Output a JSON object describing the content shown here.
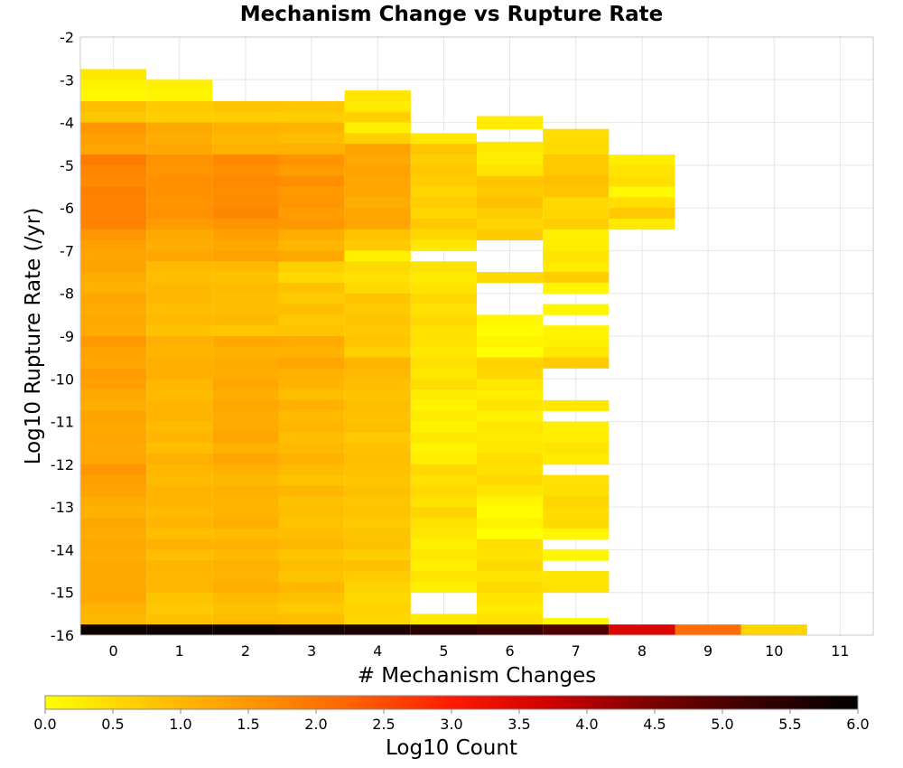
{
  "chart_data": {
    "type": "heatmap",
    "title": "Mechanism Change vs Rupture Rate",
    "xlabel": "# Mechanism Changes",
    "ylabel": "Log10 Rupture Rate (/yr)",
    "xlim": [
      -0.5,
      11.5
    ],
    "ylim": [
      -16,
      -2
    ],
    "x_ticks": [
      "0",
      "1",
      "2",
      "3",
      "4",
      "5",
      "6",
      "7",
      "8",
      "9",
      "10",
      "11"
    ],
    "y_ticks": [
      "-2",
      "-3",
      "-4",
      "-5",
      "-6",
      "-7",
      "-8",
      "-9",
      "-10",
      "-11",
      "-12",
      "-13",
      "-14",
      "-15",
      "-16"
    ],
    "grid": true,
    "y_bin_width": 0.25,
    "colorbar": {
      "label": "Log10 Count",
      "min": 0.0,
      "max": 6.0,
      "ticks": [
        "0.0",
        "0.5",
        "1.0",
        "1.5",
        "2.0",
        "2.5",
        "3.0",
        "3.5",
        "4.0",
        "4.5",
        "5.0",
        "5.5",
        "6.0"
      ],
      "palette": [
        "#ffff00",
        "#ffc800",
        "#ff9600",
        "#ff6400",
        "#ff1a00",
        "#cc0000",
        "#7a0000",
        "#3a0000",
        "#000000"
      ]
    },
    "columns": [
      {
        "x": 0,
        "runs": [
          [
            -2.75,
            -3.5,
            0.2
          ],
          [
            -3.5,
            -4.0,
            0.8
          ],
          [
            -4.0,
            -4.75,
            1.4
          ],
          [
            -4.75,
            -6.5,
            1.8
          ],
          [
            -6.5,
            -7.25,
            1.4
          ],
          [
            -7.25,
            -9.0,
            1.2
          ],
          [
            -9.0,
            -10.0,
            1.35
          ],
          [
            -10.0,
            -12.0,
            1.25
          ],
          [
            -12.0,
            -12.5,
            1.4
          ],
          [
            -12.5,
            -15.0,
            1.2
          ],
          [
            -15.0,
            -15.75,
            1.1
          ],
          [
            -15.75,
            -16.0,
            5.8
          ]
        ]
      },
      {
        "x": 1,
        "runs": [
          [
            -3.0,
            -3.5,
            0.2
          ],
          [
            -3.5,
            -4.0,
            0.7
          ],
          [
            -4.0,
            -4.75,
            1.2
          ],
          [
            -4.75,
            -6.5,
            1.55
          ],
          [
            -6.5,
            -7.25,
            1.2
          ],
          [
            -7.25,
            -9.0,
            0.95
          ],
          [
            -9.0,
            -10.0,
            1.1
          ],
          [
            -10.0,
            -12.0,
            1.0
          ],
          [
            -12.0,
            -15.0,
            1.0
          ],
          [
            -15.0,
            -15.75,
            0.8
          ],
          [
            -15.75,
            -16.0,
            5.8
          ]
        ]
      },
      {
        "x": 2,
        "runs": [
          [
            -3.5,
            -4.0,
            0.75
          ],
          [
            -4.0,
            -4.75,
            1.05
          ],
          [
            -4.75,
            -6.5,
            1.65
          ],
          [
            -6.5,
            -7.25,
            1.3
          ],
          [
            -7.25,
            -9.0,
            0.9
          ],
          [
            -9.0,
            -10.0,
            1.15
          ],
          [
            -10.0,
            -12.0,
            1.2
          ],
          [
            -12.0,
            -15.0,
            1.05
          ],
          [
            -15.0,
            -15.75,
            0.9
          ],
          [
            -15.75,
            -16.0,
            5.8
          ]
        ]
      },
      {
        "x": 3,
        "runs": [
          [
            -3.5,
            -4.0,
            0.75
          ],
          [
            -4.0,
            -4.75,
            1.0
          ],
          [
            -4.75,
            -6.5,
            1.5
          ],
          [
            -6.5,
            -7.25,
            1.1
          ],
          [
            -7.25,
            -7.75,
            0.6
          ],
          [
            -7.75,
            -9.0,
            0.8
          ],
          [
            -9.0,
            -10.0,
            1.15
          ],
          [
            -10.0,
            -12.0,
            1.0
          ],
          [
            -12.0,
            -15.0,
            0.9
          ],
          [
            -15.0,
            -15.75,
            0.8
          ],
          [
            -15.75,
            -16.0,
            5.7
          ]
        ]
      },
      {
        "x": 4,
        "runs": [
          [
            -3.25,
            -3.75,
            0.3
          ],
          [
            -3.75,
            -4.0,
            0.6
          ],
          [
            -4.0,
            -4.25,
            0.15
          ],
          [
            -4.25,
            -4.5,
            0.6
          ],
          [
            -4.5,
            -6.5,
            1.25
          ],
          [
            -6.5,
            -7.0,
            0.75
          ],
          [
            -7.0,
            -7.25,
            0.15
          ],
          [
            -7.25,
            -8.0,
            0.45
          ],
          [
            -8.0,
            -9.5,
            0.75
          ],
          [
            -9.5,
            -10.0,
            1.0
          ],
          [
            -10.0,
            -12.0,
            0.85
          ],
          [
            -12.0,
            -14.75,
            0.8
          ],
          [
            -14.75,
            -15.75,
            0.55
          ],
          [
            -15.75,
            -16.0,
            5.6
          ]
        ]
      },
      {
        "x": 5,
        "runs": [
          [
            -4.25,
            -4.5,
            0.25
          ],
          [
            -4.5,
            -5.25,
            0.7
          ],
          [
            -5.25,
            -6.75,
            0.6
          ],
          [
            -6.75,
            -7.0,
            0.25
          ],
          [
            -7.25,
            -8.0,
            0.3
          ],
          [
            -8.0,
            -9.0,
            0.45
          ],
          [
            -9.0,
            -10.25,
            0.35
          ],
          [
            -10.25,
            -12.0,
            0.2
          ],
          [
            -12.0,
            -13.5,
            0.45
          ],
          [
            -13.5,
            -15.0,
            0.25
          ],
          [
            -15.5,
            -16.0,
            0.2
          ],
          [
            -15.75,
            -16.0,
            5.5
          ]
        ]
      },
      {
        "x": 6,
        "runs": [
          [
            -3.85,
            -4.15,
            0.25
          ],
          [
            -4.45,
            -5.25,
            0.3
          ],
          [
            -5.25,
            -6.0,
            0.8
          ],
          [
            -6.0,
            -6.75,
            0.65
          ],
          [
            -7.5,
            -7.75,
            0.5
          ],
          [
            -8.5,
            -9.5,
            0.1
          ],
          [
            -9.5,
            -10.0,
            0.6
          ],
          [
            -10.0,
            -11.75,
            0.3
          ],
          [
            -11.75,
            -12.75,
            0.45
          ],
          [
            -12.75,
            -13.75,
            0.1
          ],
          [
            -13.75,
            -15.0,
            0.45
          ],
          [
            -15.0,
            -15.75,
            0.35
          ],
          [
            -15.75,
            -16.0,
            5.3
          ]
        ]
      },
      {
        "x": 7,
        "runs": [
          [
            -4.15,
            -4.75,
            0.55
          ],
          [
            -4.75,
            -5.75,
            0.8
          ],
          [
            -5.75,
            -6.5,
            0.6
          ],
          [
            -6.5,
            -7.5,
            0.3
          ],
          [
            -7.5,
            -7.75,
            0.75
          ],
          [
            -7.75,
            -8.0,
            0.2
          ],
          [
            -8.25,
            -8.5,
            0.2
          ],
          [
            -8.75,
            -9.5,
            0.25
          ],
          [
            -9.5,
            -9.75,
            0.8
          ],
          [
            -10.5,
            -10.75,
            0.4
          ],
          [
            -11.0,
            -12.0,
            0.3
          ],
          [
            -12.25,
            -13.5,
            0.5
          ],
          [
            -13.5,
            -13.75,
            0.2
          ],
          [
            -14.0,
            -14.25,
            0.2
          ],
          [
            -14.5,
            -15.0,
            0.45
          ],
          [
            -15.6,
            -16.0,
            0.2
          ],
          [
            -15.75,
            -16.0,
            5.0
          ]
        ]
      },
      {
        "x": 8,
        "runs": [
          [
            -4.75,
            -5.25,
            0.3
          ],
          [
            -5.25,
            -5.5,
            0.5
          ],
          [
            -5.5,
            -5.75,
            0.15
          ],
          [
            -5.75,
            -6.0,
            0.5
          ],
          [
            -6.0,
            -6.25,
            0.8
          ],
          [
            -6.25,
            -6.5,
            0.35
          ],
          [
            -15.75,
            -16.0,
            3.6
          ]
        ]
      },
      {
        "x": 9,
        "runs": [
          [
            -15.75,
            -16.0,
            2.1
          ]
        ]
      },
      {
        "x": 10,
        "runs": [
          [
            -15.75,
            -16.0,
            0.6
          ]
        ]
      }
    ]
  }
}
